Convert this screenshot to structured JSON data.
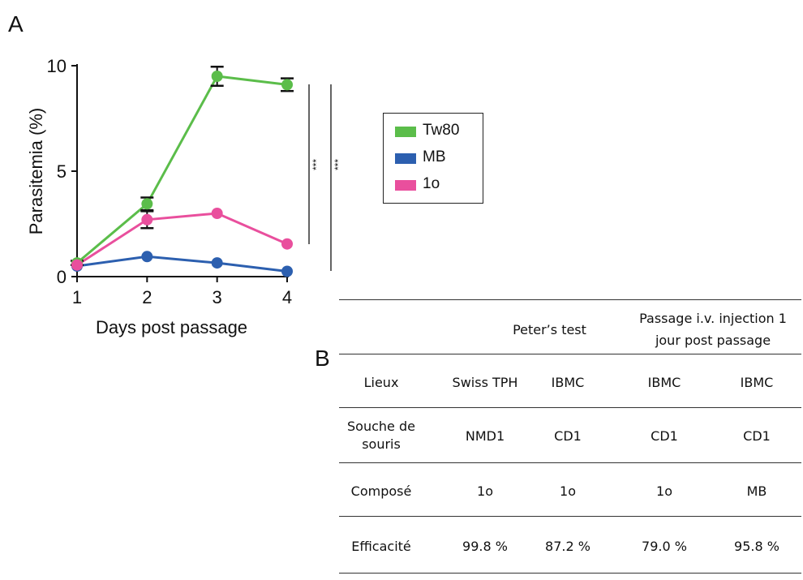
{
  "panels": {
    "a_label": "A",
    "b_label": "B"
  },
  "chart_data": {
    "type": "line",
    "x": [
      1,
      2,
      3,
      4
    ],
    "xlabel": "Days post passage",
    "ylabel": "Parasitemia (%)",
    "xticks": [
      "1",
      "2",
      "3",
      "4"
    ],
    "yticks": [
      "0",
      "5",
      "10"
    ],
    "xlim": [
      1,
      4
    ],
    "ylim": [
      0,
      10
    ],
    "legend_position": "right",
    "series": [
      {
        "name": "Tw80",
        "color": "#5bbd4a",
        "values": [
          0.65,
          3.45,
          9.5,
          9.1
        ],
        "err": [
          0.1,
          0.3,
          0.45,
          0.3
        ]
      },
      {
        "name": "MB",
        "color": "#2c5faf",
        "values": [
          0.5,
          0.95,
          0.65,
          0.25
        ],
        "err": [
          0,
          0,
          0,
          0
        ]
      },
      {
        "name": "1o",
        "color": "#e94f9d",
        "values": [
          0.55,
          2.7,
          3.0,
          1.55
        ],
        "err": [
          0.05,
          0.4,
          0.05,
          0.05
        ]
      }
    ],
    "annotations": [
      "***",
      "***"
    ]
  },
  "table": {
    "group_headers": [
      "Peter’s test",
      "Passage i.v. injection 1",
      "jour post passage"
    ],
    "rows": [
      {
        "label": [
          "Lieux"
        ],
        "cells": [
          "Swiss TPH",
          "IBMC",
          "IBMC",
          "IBMC"
        ]
      },
      {
        "label": [
          "Souche de",
          "souris"
        ],
        "cells": [
          "NMD1",
          "CD1",
          "CD1",
          "CD1"
        ]
      },
      {
        "label": [
          "Composé"
        ],
        "cells": [
          "1o",
          "1o",
          "1o",
          "MB"
        ]
      },
      {
        "label": [
          "Efficacité"
        ],
        "cells": [
          "99.8 %",
          "87.2 %",
          "79.0 %",
          "95.8 %"
        ]
      }
    ]
  }
}
